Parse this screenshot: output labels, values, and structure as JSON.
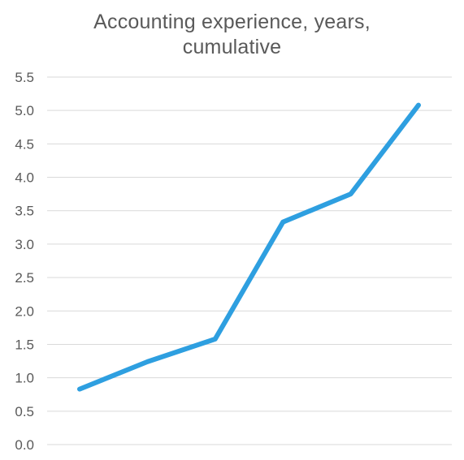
{
  "chart_data": {
    "type": "line",
    "title_lines": [
      "Accounting experience, years,",
      "cumulative"
    ],
    "xlabel": "",
    "ylabel": "",
    "x": [
      1,
      2,
      3,
      4,
      5,
      6
    ],
    "series": [
      {
        "values": [
          0.83,
          1.24,
          1.58,
          3.33,
          3.75,
          5.08
        ],
        "color": "#2E9FE0"
      }
    ],
    "ylim": [
      0,
      5.5
    ],
    "yticks": [
      "0.0",
      "0.5",
      "1.0",
      "1.5",
      "2.0",
      "2.5",
      "3.0",
      "3.5",
      "4.0",
      "4.5",
      "5.0",
      "5.5"
    ],
    "grid": true,
    "legend": "none",
    "gridline_color": "#D9D9D9",
    "text_color": "#595959"
  }
}
